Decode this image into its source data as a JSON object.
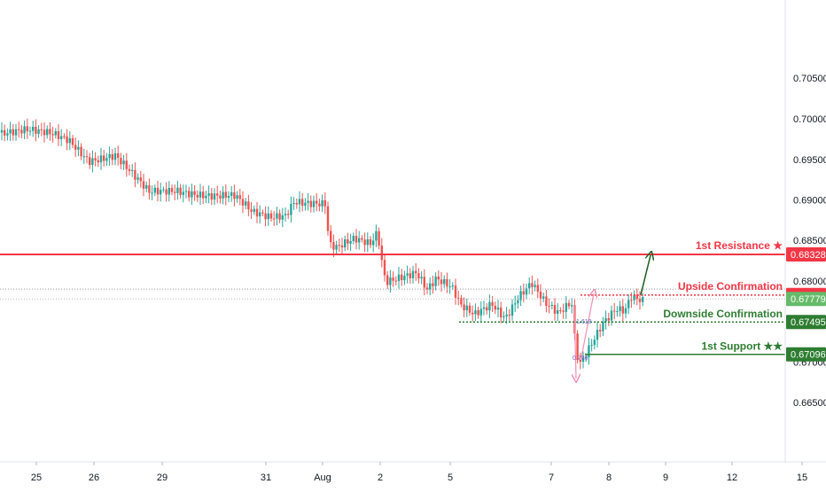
{
  "chart_data": {
    "type": "candlestick",
    "title": "",
    "ylim": [
      0.6625,
      0.709
    ],
    "y_ticks": [
      "0.70500",
      "0.70000",
      "0.69500",
      "0.69000",
      "0.68500",
      "0.68000",
      "0.67500",
      "0.67000",
      "0.66500"
    ],
    "x_ticks": [
      "25",
      "26",
      "29",
      "31",
      "Aug",
      "2",
      "5",
      "7",
      "8",
      "9",
      "12",
      "15"
    ],
    "levels": [
      {
        "name": "resistance",
        "label": "1st Resistance ★",
        "price": 0.68328,
        "price_label": "0.68328",
        "color": "#f23645",
        "style": "solid"
      },
      {
        "name": "upside-confirmation",
        "label": "Upside Confirmation",
        "price": 0.67827,
        "price_label": "0.67827",
        "color": "#f23645",
        "style": "dotted"
      },
      {
        "name": "downside-confirmation",
        "label": "Downside Confirmation",
        "price": 0.67495,
        "price_label": "0.67495",
        "color": "#2e7d32",
        "style": "dotted"
      },
      {
        "name": "support",
        "label": "1st Support ★★",
        "price": 0.67096,
        "price_label": "0.67096",
        "color": "#2e7d32",
        "style": "solid"
      }
    ],
    "current_price": {
      "price": 0.67779,
      "price_label": "0.67779",
      "color": "#66bb6a"
    },
    "fib_labels": [
      "1.618",
      "0.786"
    ],
    "colors": {
      "up": "#26a69a",
      "down": "#ef5350",
      "resistance": "#f23645",
      "support": "#2e7d32",
      "arrow_up": "#1b5e20",
      "arrow_pink": "#f48fb1"
    }
  }
}
